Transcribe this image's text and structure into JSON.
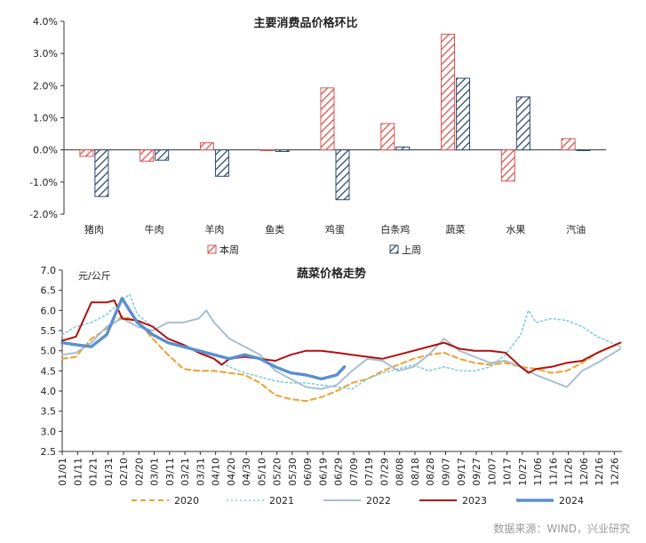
{
  "chart_data": [
    {
      "type": "bar",
      "title": "主要消费品价格环比",
      "categories": [
        "猪肉",
        "牛肉",
        "羊肉",
        "鱼类",
        "鸡蛋",
        "白条鸡",
        "蔬菜",
        "水果",
        "汽油"
      ],
      "yticks": [
        "4.0%",
        "3.0%",
        "2.0%",
        "1.0%",
        "0.0%",
        "-1.0%",
        "-2.0%"
      ],
      "ylim": [
        -2,
        4
      ],
      "series": [
        {
          "name": "本周",
          "color": "#d9534f",
          "values": [
            -0.2,
            -0.35,
            0.22,
            -0.02,
            1.93,
            0.82,
            3.6,
            -0.97,
            0.35
          ]
        },
        {
          "name": "上周",
          "color": "#2e4a6b",
          "values": [
            -1.45,
            -0.32,
            -0.82,
            -0.05,
            -1.55,
            0.09,
            2.23,
            1.65,
            0.0
          ]
        }
      ],
      "legend_position": "bottom"
    },
    {
      "type": "line",
      "title": "蔬菜价格走势",
      "ylabel": "元/公斤",
      "ylim": [
        2.5,
        7.0
      ],
      "yticks": [
        "7.0",
        "6.5",
        "6.0",
        "5.5",
        "5.0",
        "4.5",
        "4.0",
        "3.5",
        "3.0",
        "2.5"
      ],
      "xticks": [
        "01/01",
        "01/11",
        "01/21",
        "01/31",
        "02/10",
        "02/20",
        "03/01",
        "03/11",
        "03/21",
        "03/31",
        "04/10",
        "04/20",
        "04/30",
        "05/10",
        "05/20",
        "05/30",
        "06/09",
        "06/19",
        "06/29",
        "07/09",
        "07/19",
        "07/29",
        "08/08",
        "08/18",
        "08/28",
        "09/07",
        "09/17",
        "09/27",
        "10/07",
        "10/17",
        "10/27",
        "11/06",
        "11/16",
        "11/26",
        "12/06",
        "12/16",
        "12/26"
      ],
      "x_unit": "day of year",
      "series": [
        {
          "name": "2020",
          "color": "#f0a030",
          "style": "dashed",
          "points": [
            [
              1,
              4.8
            ],
            [
              10,
              4.85
            ],
            [
              20,
              5.3
            ],
            [
              30,
              5.55
            ],
            [
              40,
              5.85
            ],
            [
              50,
              5.75
            ],
            [
              60,
              5.3
            ],
            [
              70,
              4.9
            ],
            [
              80,
              4.55
            ],
            [
              90,
              4.5
            ],
            [
              100,
              4.5
            ],
            [
              110,
              4.45
            ],
            [
              120,
              4.4
            ],
            [
              130,
              4.2
            ],
            [
              140,
              3.9
            ],
            [
              150,
              3.8
            ],
            [
              160,
              3.75
            ],
            [
              170,
              3.85
            ],
            [
              180,
              4.0
            ],
            [
              190,
              4.2
            ],
            [
              200,
              4.3
            ],
            [
              210,
              4.5
            ],
            [
              220,
              4.65
            ],
            [
              230,
              4.8
            ],
            [
              240,
              4.9
            ],
            [
              250,
              4.95
            ],
            [
              260,
              4.8
            ],
            [
              270,
              4.7
            ],
            [
              280,
              4.65
            ],
            [
              290,
              4.7
            ],
            [
              300,
              4.6
            ],
            [
              310,
              4.55
            ],
            [
              320,
              4.45
            ],
            [
              330,
              4.5
            ],
            [
              340,
              4.7
            ],
            [
              350,
              4.95
            ],
            [
              365,
              5.2
            ]
          ]
        },
        {
          "name": "2021",
          "color": "#7fcfd8",
          "style": "dotted",
          "points": [
            [
              1,
              5.4
            ],
            [
              10,
              5.6
            ],
            [
              20,
              5.7
            ],
            [
              30,
              5.9
            ],
            [
              40,
              6.25
            ],
            [
              45,
              6.4
            ],
            [
              50,
              5.9
            ],
            [
              60,
              5.6
            ],
            [
              70,
              5.3
            ],
            [
              80,
              5.15
            ],
            [
              90,
              5.0
            ],
            [
              100,
              4.8
            ],
            [
              110,
              4.6
            ],
            [
              120,
              4.45
            ],
            [
              130,
              4.35
            ],
            [
              140,
              4.25
            ],
            [
              150,
              4.2
            ],
            [
              160,
              4.2
            ],
            [
              170,
              4.15
            ],
            [
              180,
              4.1
            ],
            [
              190,
              4.05
            ],
            [
              200,
              4.3
            ],
            [
              210,
              4.45
            ],
            [
              220,
              4.55
            ],
            [
              230,
              4.65
            ],
            [
              240,
              4.5
            ],
            [
              250,
              4.6
            ],
            [
              260,
              4.5
            ],
            [
              270,
              4.5
            ],
            [
              280,
              4.6
            ],
            [
              290,
              4.9
            ],
            [
              300,
              5.4
            ],
            [
              305,
              6.0
            ],
            [
              310,
              5.7
            ],
            [
              320,
              5.8
            ],
            [
              330,
              5.75
            ],
            [
              340,
              5.6
            ],
            [
              350,
              5.35
            ],
            [
              365,
              5.1
            ]
          ]
        },
        {
          "name": "2022",
          "color": "#a9bfd0",
          "style": "solid",
          "points": [
            [
              1,
              4.9
            ],
            [
              10,
              4.95
            ],
            [
              20,
              5.2
            ],
            [
              30,
              5.6
            ],
            [
              40,
              5.8
            ],
            [
              50,
              5.6
            ],
            [
              60,
              5.5
            ],
            [
              70,
              5.7
            ],
            [
              80,
              5.7
            ],
            [
              90,
              5.8
            ],
            [
              95,
              6.0
            ],
            [
              100,
              5.7
            ],
            [
              110,
              5.3
            ],
            [
              120,
              5.1
            ],
            [
              130,
              4.9
            ],
            [
              140,
              4.5
            ],
            [
              150,
              4.3
            ],
            [
              160,
              4.1
            ],
            [
              170,
              4.05
            ],
            [
              180,
              4.15
            ],
            [
              190,
              4.5
            ],
            [
              200,
              4.8
            ],
            [
              210,
              4.75
            ],
            [
              220,
              4.5
            ],
            [
              230,
              4.6
            ],
            [
              240,
              4.9
            ],
            [
              250,
              5.3
            ],
            [
              260,
              5.0
            ],
            [
              270,
              4.85
            ],
            [
              280,
              4.7
            ],
            [
              290,
              4.75
            ],
            [
              300,
              4.6
            ],
            [
              310,
              4.4
            ],
            [
              320,
              4.25
            ],
            [
              330,
              4.1
            ],
            [
              340,
              4.5
            ],
            [
              350,
              4.7
            ],
            [
              365,
              5.05
            ]
          ]
        },
        {
          "name": "2023",
          "color": "#b01010",
          "style": "solid",
          "points": [
            [
              1,
              5.25
            ],
            [
              10,
              5.35
            ],
            [
              20,
              6.2
            ],
            [
              30,
              6.2
            ],
            [
              35,
              6.25
            ],
            [
              40,
              5.8
            ],
            [
              50,
              5.75
            ],
            [
              60,
              5.6
            ],
            [
              70,
              5.3
            ],
            [
              80,
              5.15
            ],
            [
              90,
              4.95
            ],
            [
              100,
              4.8
            ],
            [
              105,
              4.65
            ],
            [
              110,
              4.8
            ],
            [
              120,
              4.85
            ],
            [
              130,
              4.8
            ],
            [
              140,
              4.75
            ],
            [
              150,
              4.9
            ],
            [
              160,
              5.0
            ],
            [
              170,
              5.0
            ],
            [
              180,
              4.95
            ],
            [
              190,
              4.9
            ],
            [
              200,
              4.85
            ],
            [
              210,
              4.8
            ],
            [
              220,
              4.9
            ],
            [
              230,
              5.0
            ],
            [
              240,
              5.1
            ],
            [
              250,
              5.2
            ],
            [
              260,
              5.05
            ],
            [
              270,
              5.0
            ],
            [
              280,
              5.0
            ],
            [
              290,
              4.95
            ],
            [
              300,
              4.6
            ],
            [
              305,
              4.45
            ],
            [
              310,
              4.55
            ],
            [
              320,
              4.6
            ],
            [
              330,
              4.7
            ],
            [
              340,
              4.75
            ],
            [
              350,
              4.95
            ],
            [
              365,
              5.2
            ]
          ]
        },
        {
          "name": "2024",
          "color": "#5b8fcf",
          "style": "thick",
          "points": [
            [
              1,
              5.2
            ],
            [
              10,
              5.15
            ],
            [
              20,
              5.1
            ],
            [
              30,
              5.4
            ],
            [
              40,
              6.3
            ],
            [
              45,
              6.0
            ],
            [
              50,
              5.7
            ],
            [
              60,
              5.4
            ],
            [
              70,
              5.2
            ],
            [
              80,
              5.1
            ],
            [
              90,
              5.0
            ],
            [
              100,
              4.9
            ],
            [
              110,
              4.8
            ],
            [
              120,
              4.9
            ],
            [
              130,
              4.8
            ],
            [
              140,
              4.6
            ],
            [
              150,
              4.45
            ],
            [
              160,
              4.4
            ],
            [
              170,
              4.3
            ],
            [
              180,
              4.4
            ],
            [
              185,
              4.6
            ]
          ]
        }
      ],
      "legend_position": "bottom"
    }
  ],
  "source_note": "数据来源：WIND，兴业研究"
}
